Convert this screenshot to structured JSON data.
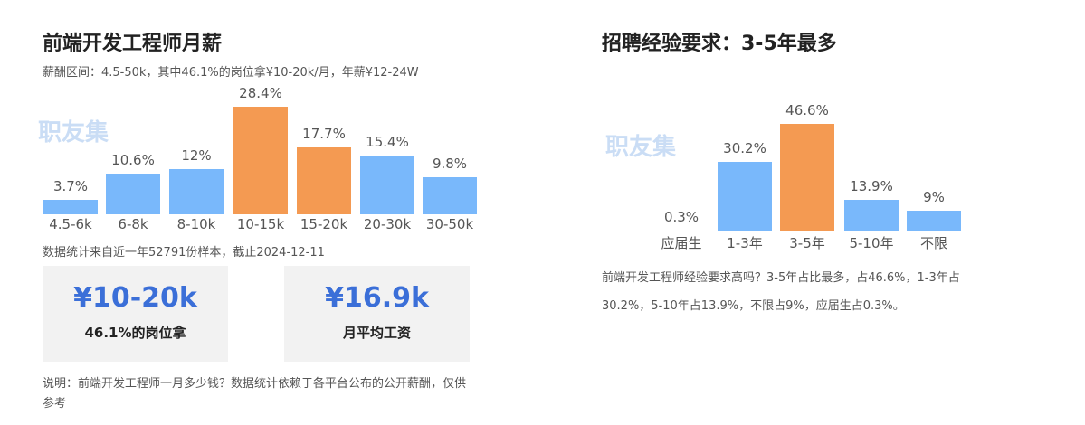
{
  "left": {
    "title": "前端开发工程师月薪",
    "subtitle": "薪酬区间：4.5-50k，其中46.1%的岗位拿¥10-20k/月，年薪¥12-24W",
    "watermark": "职友集",
    "source": "数据统计来自近一年52791份样本，截止2024-12-11",
    "cards": [
      {
        "value": "¥10-20k",
        "caption": "46.1%的岗位拿"
      },
      {
        "value": "¥16.9k",
        "caption": "月平均工资"
      }
    ],
    "note": "说明：前端开发工程师一月多少钱？数据统计依赖于各平台公布的公开薪酬，仅供参考"
  },
  "right": {
    "title": "招聘经验要求：3-5年最多",
    "watermark": "职友集",
    "note": "前端开发工程师经验要求高吗？3-5年占比最多，占46.6%，1-3年占30.2%，5-10年占13.9%，不限占9%，应届生占0.3%。"
  },
  "colors": {
    "normal": "#79b8fb",
    "highlight": "#f49a52"
  },
  "chart_data": [
    {
      "type": "bar",
      "categories": [
        "4.5-6k",
        "6-8k",
        "8-10k",
        "10-15k",
        "15-20k",
        "20-30k",
        "30-50k"
      ],
      "values": [
        3.7,
        10.6,
        12,
        28.4,
        17.7,
        15.4,
        9.8
      ],
      "labels": [
        "3.7%",
        "10.6%",
        "12%",
        "28.4%",
        "17.7%",
        "15.4%",
        "9.8%"
      ],
      "highlighted": [
        "10-15k",
        "15-20k"
      ],
      "unit": "%"
    },
    {
      "type": "bar",
      "categories": [
        "应届生",
        "1-3年",
        "3-5年",
        "5-10年",
        "不限"
      ],
      "values": [
        0.3,
        30.2,
        46.6,
        13.9,
        9
      ],
      "labels": [
        "0.3%",
        "30.2%",
        "46.6%",
        "13.9%",
        "9%"
      ],
      "highlighted": [
        "3-5年"
      ],
      "unit": "%"
    }
  ]
}
